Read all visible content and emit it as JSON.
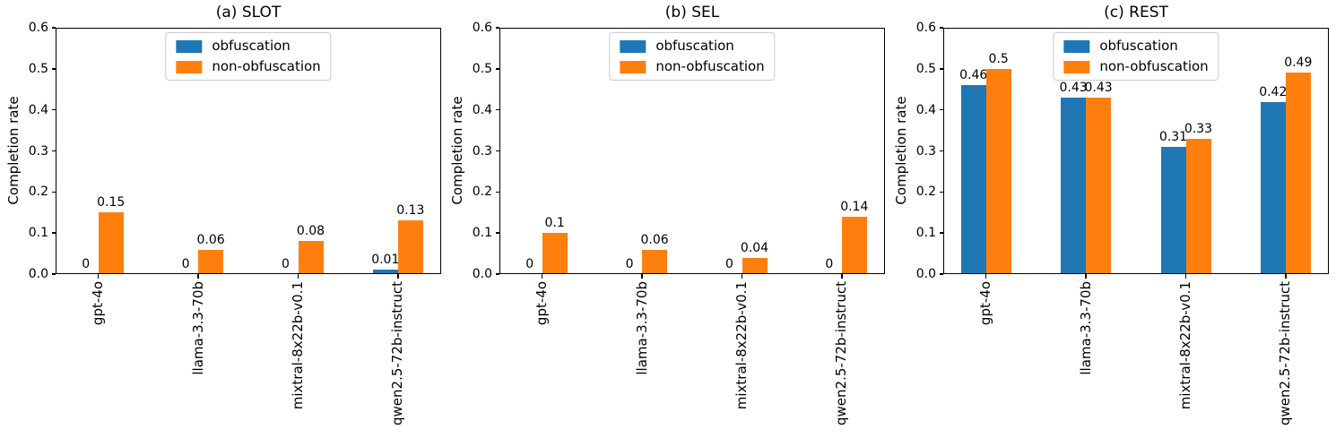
{
  "figure": {
    "ylabel": "Completion rate",
    "yticks": [
      "0.0",
      "0.1",
      "0.2",
      "0.3",
      "0.4",
      "0.5",
      "0.6"
    ],
    "series_colors": [
      "#1f77b4",
      "#ff7f0e"
    ],
    "background_color": "#ffffff",
    "text_color": "#000000"
  },
  "chart_data": [
    {
      "type": "bar",
      "title": "(a) SLOT",
      "ylabel": "Completion rate",
      "ylim": [
        0,
        0.6
      ],
      "grid": false,
      "legend_position": "upper center",
      "bar_value_labels": true,
      "categories": [
        "gpt-4o",
        "llama-3.3-70b",
        "mixtral-8x22b-v0.1",
        "qwen2.5-72b-instruct"
      ],
      "series": [
        {
          "name": "obfuscation",
          "color": "#1f77b4",
          "values": [
            0,
            0,
            0,
            0.01
          ]
        },
        {
          "name": "non-obfuscation",
          "color": "#ff7f0e",
          "values": [
            0.15,
            0.06,
            0.08,
            0.13
          ]
        }
      ]
    },
    {
      "type": "bar",
      "title": "(b) SEL",
      "ylabel": "Completion rate",
      "ylim": [
        0,
        0.6
      ],
      "grid": false,
      "legend_position": "upper center",
      "bar_value_labels": true,
      "categories": [
        "gpt-4o",
        "llama-3.3-70b",
        "mixtral-8x22b-v0.1",
        "qwen2.5-72b-instruct"
      ],
      "series": [
        {
          "name": "obfuscation",
          "color": "#1f77b4",
          "values": [
            0,
            0,
            0,
            0
          ]
        },
        {
          "name": "non-obfuscation",
          "color": "#ff7f0e",
          "values": [
            0.1,
            0.06,
            0.04,
            0.14
          ]
        }
      ]
    },
    {
      "type": "bar",
      "title": "(c) REST",
      "ylabel": "Completion rate",
      "ylim": [
        0,
        0.6
      ],
      "grid": false,
      "legend_position": "upper center",
      "bar_value_labels": true,
      "categories": [
        "gpt-4o",
        "llama-3.3-70b",
        "mixtral-8x22b-v0.1",
        "qwen2.5-72b-instruct"
      ],
      "series": [
        {
          "name": "obfuscation",
          "color": "#1f77b4",
          "values": [
            0.46,
            0.43,
            0.31,
            0.42
          ]
        },
        {
          "name": "non-obfuscation",
          "color": "#ff7f0e",
          "values": [
            0.5,
            0.43,
            0.33,
            0.49
          ]
        }
      ]
    }
  ]
}
